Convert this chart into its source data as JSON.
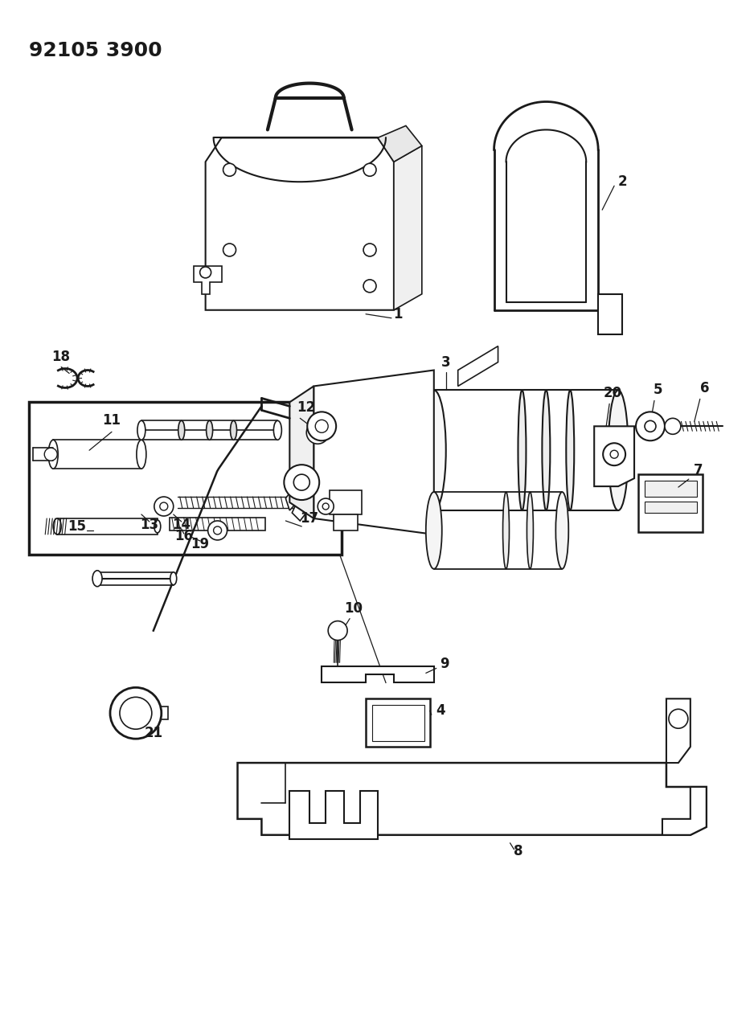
{
  "title": "92105 3900",
  "bg_color": "#ffffff",
  "line_color": "#1a1a1a",
  "title_fontsize": 18,
  "label_fontsize": 12,
  "fig_width": 9.38,
  "fig_height": 12.74,
  "dpi": 100
}
